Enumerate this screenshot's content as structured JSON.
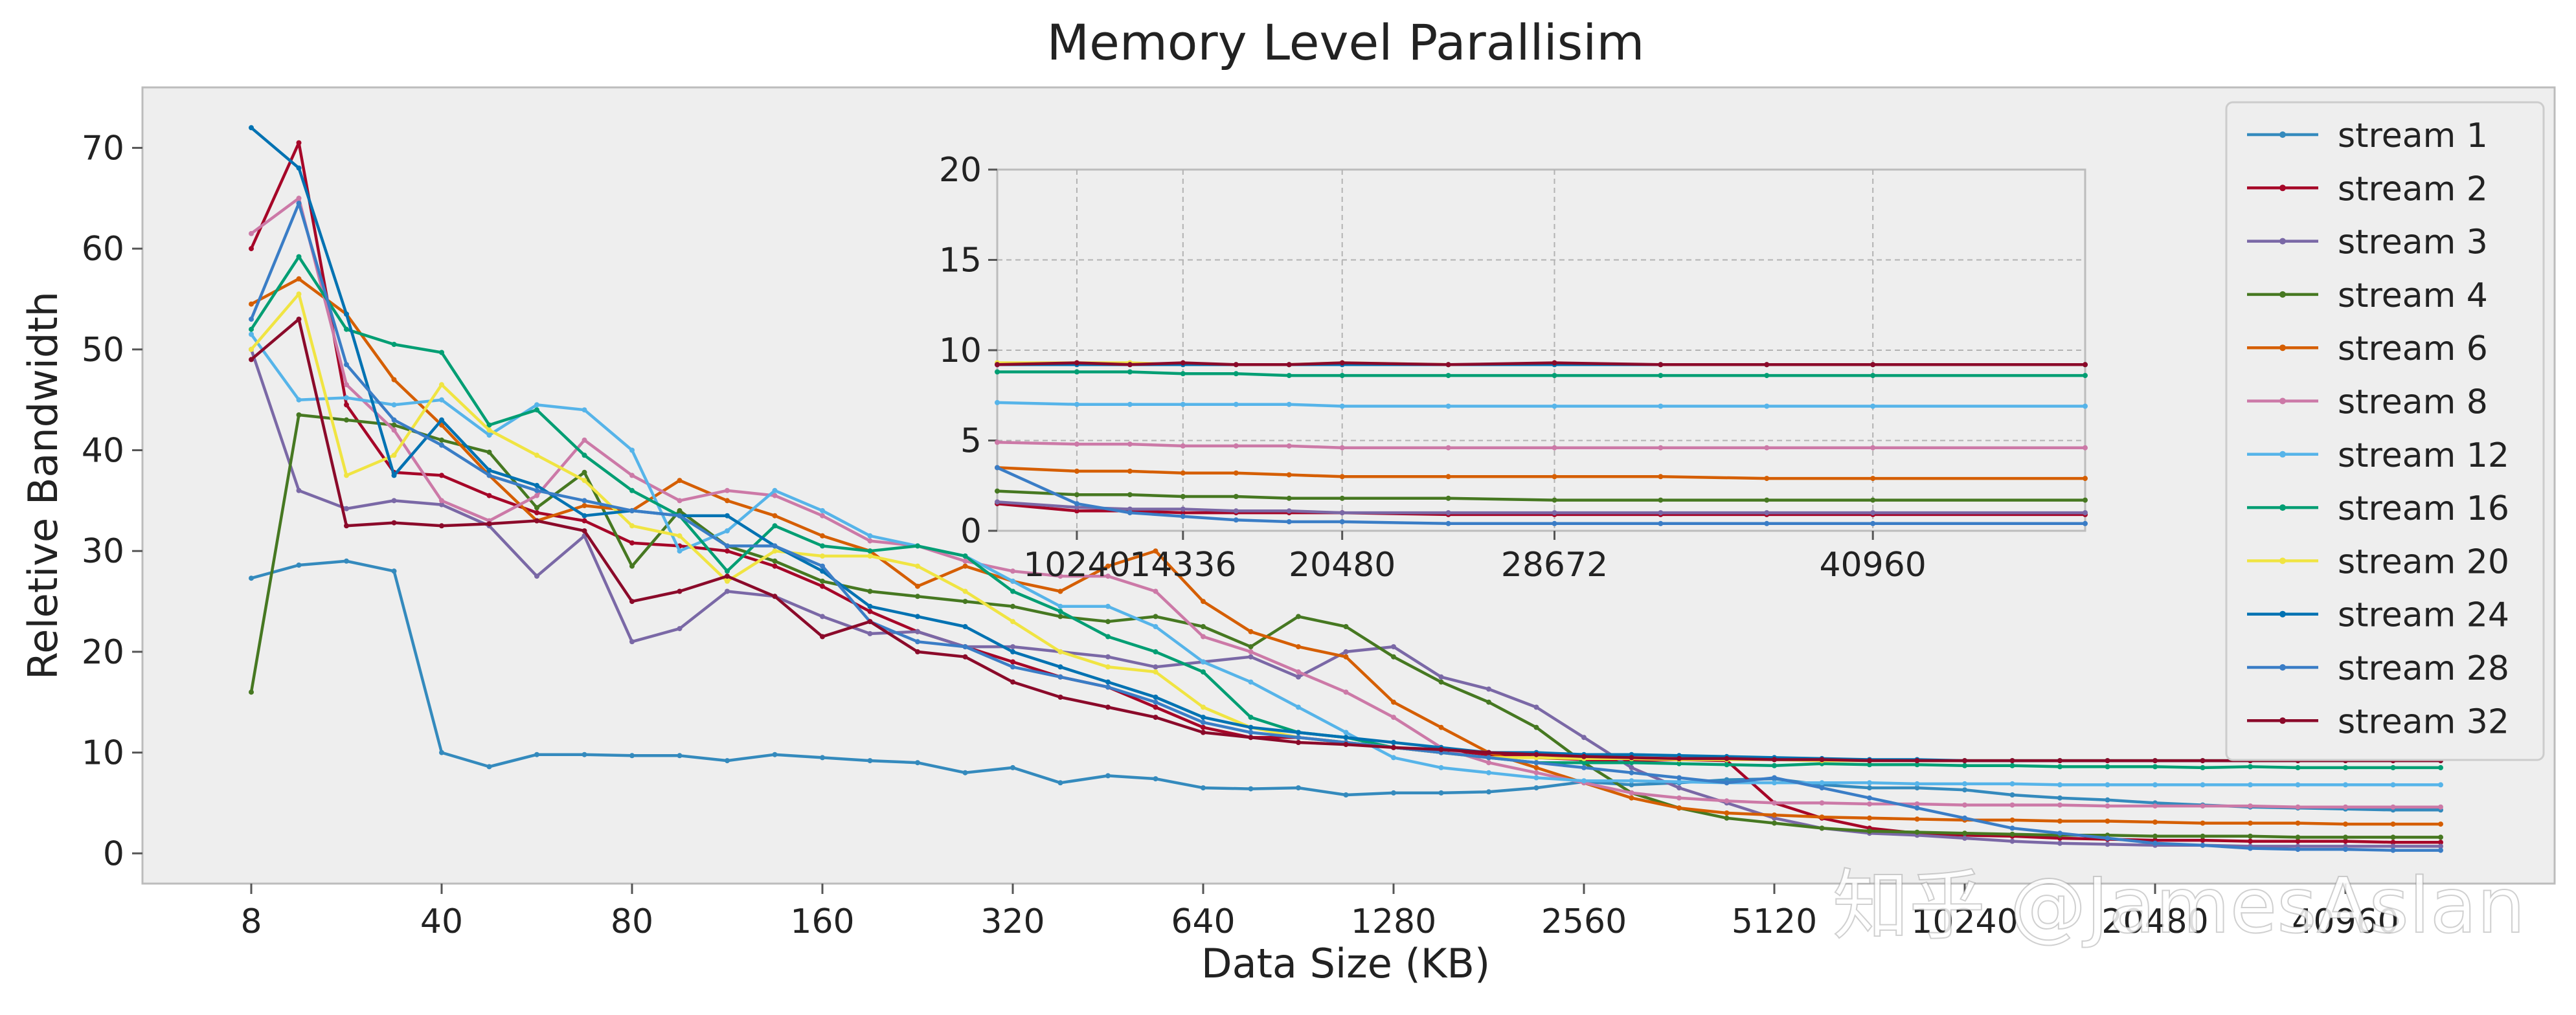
{
  "chart_data": {
    "type": "line",
    "title": "Memory Level Parallisim",
    "xlabel": "Data Size (KB)",
    "ylabel": "Reletive Bandwidth",
    "ylim": [
      -3,
      76
    ],
    "yticks": [
      0,
      10,
      20,
      30,
      40,
      50,
      60,
      70
    ],
    "xtick_labels": [
      "8",
      "40",
      "80",
      "160",
      "320",
      "640",
      "1280",
      "2560",
      "5120",
      "10240",
      "20480",
      "40960"
    ],
    "xtick_index": [
      0,
      4,
      8,
      12,
      16,
      20,
      24,
      28,
      32,
      36,
      40,
      44
    ],
    "x_index": [
      0,
      1,
      2,
      3,
      4,
      5,
      6,
      7,
      8,
      9,
      10,
      11,
      12,
      13,
      14,
      15,
      16,
      17,
      18,
      19,
      20,
      21,
      22,
      23,
      24,
      25,
      26,
      27,
      28,
      29,
      30,
      31,
      32,
      33,
      34,
      35,
      36,
      37,
      38,
      39,
      40,
      41,
      42,
      43,
      44,
      45,
      46
    ],
    "grid": false,
    "legend": "right",
    "watermark": "知乎 @JamesAslan",
    "series": [
      {
        "name": "stream 1",
        "color": "#348ABD",
        "values": [
          27.3,
          28.6,
          29.0,
          28.0,
          10.0,
          8.6,
          9.8,
          9.8,
          9.7,
          9.7,
          9.2,
          9.8,
          9.5,
          9.2,
          9.0,
          8.0,
          8.5,
          7.0,
          7.7,
          7.4,
          6.5,
          6.4,
          6.5,
          5.8,
          6.0,
          6.0,
          6.1,
          6.5,
          7.1,
          6.8,
          7.0,
          7.3,
          7.4,
          6.8,
          6.5,
          6.5,
          6.3,
          5.8,
          5.5,
          5.3,
          5.0,
          4.8,
          4.6,
          4.5,
          4.4,
          4.3,
          4.3
        ]
      },
      {
        "name": "stream 2",
        "color": "#A60628",
        "values": [
          60.0,
          70.5,
          44.5,
          37.8,
          37.5,
          35.5,
          33.8,
          33.0,
          30.8,
          30.5,
          30.0,
          28.5,
          26.5,
          24.0,
          22.0,
          20.5,
          19.0,
          17.5,
          16.5,
          14.5,
          12.5,
          11.5,
          11.5,
          11.0,
          10.5,
          10.0,
          9.8,
          9.5,
          9.3,
          9.2,
          9.3,
          9.2,
          5.0,
          3.5,
          2.5,
          2.0,
          1.8,
          1.7,
          1.5,
          1.4,
          1.3,
          1.3,
          1.2,
          1.2,
          1.2,
          1.1,
          1.1
        ]
      },
      {
        "name": "stream 3",
        "color": "#7A68A6",
        "values": [
          50.0,
          36.0,
          34.2,
          35.0,
          34.6,
          32.5,
          27.5,
          31.5,
          21.0,
          22.3,
          26.0,
          25.5,
          23.5,
          21.8,
          22.0,
          20.5,
          20.5,
          20.0,
          19.5,
          18.5,
          19.0,
          19.5,
          17.5,
          20.0,
          20.5,
          17.5,
          16.3,
          14.5,
          11.5,
          8.5,
          6.5,
          5.0,
          3.5,
          2.5,
          2.0,
          1.8,
          1.5,
          1.2,
          1.0,
          0.9,
          0.8,
          0.8,
          0.7,
          0.7,
          0.7,
          0.7,
          0.7
        ]
      },
      {
        "name": "stream 4",
        "color": "#467821",
        "values": [
          16.0,
          43.5,
          43.0,
          42.5,
          41.0,
          39.8,
          34.3,
          37.8,
          28.5,
          34.0,
          30.5,
          29.0,
          27.0,
          26.0,
          25.5,
          25.0,
          24.5,
          23.5,
          23.0,
          23.5,
          22.5,
          20.5,
          23.5,
          22.5,
          19.5,
          17.0,
          15.0,
          12.5,
          9.0,
          6.0,
          4.5,
          3.5,
          3.0,
          2.5,
          2.2,
          2.1,
          2.0,
          1.9,
          1.8,
          1.8,
          1.7,
          1.7,
          1.7,
          1.6,
          1.6,
          1.6,
          1.6
        ]
      },
      {
        "name": "stream 6",
        "color": "#D55E00",
        "values": [
          54.5,
          57.0,
          53.5,
          47.0,
          42.5,
          37.5,
          33.0,
          34.5,
          34.0,
          37.0,
          35.0,
          33.5,
          31.5,
          30.0,
          26.5,
          28.5,
          27.0,
          26.0,
          28.5,
          30.0,
          25.0,
          22.0,
          20.5,
          19.5,
          15.0,
          12.5,
          10.0,
          8.5,
          7.0,
          5.5,
          4.5,
          4.0,
          3.8,
          3.6,
          3.5,
          3.4,
          3.3,
          3.3,
          3.2,
          3.2,
          3.1,
          3.0,
          3.0,
          3.0,
          2.9,
          2.9,
          2.9
        ]
      },
      {
        "name": "stream 8",
        "color": "#CC79A7",
        "values": [
          61.5,
          65.0,
          46.5,
          42.0,
          35.0,
          33.0,
          35.5,
          41.0,
          37.5,
          35.0,
          36.0,
          35.5,
          33.5,
          31.0,
          30.5,
          29.0,
          28.0,
          27.5,
          27.5,
          26.0,
          21.5,
          20.0,
          18.0,
          16.0,
          13.5,
          10.5,
          9.0,
          8.0,
          7.0,
          6.0,
          5.5,
          5.2,
          5.0,
          5.0,
          4.9,
          4.9,
          4.8,
          4.8,
          4.8,
          4.7,
          4.7,
          4.7,
          4.7,
          4.6,
          4.6,
          4.6,
          4.6
        ]
      },
      {
        "name": "stream 12",
        "color": "#56B4E9",
        "values": [
          51.5,
          45.0,
          45.2,
          44.5,
          45.0,
          41.5,
          44.5,
          44.0,
          40.0,
          30.0,
          32.0,
          36.0,
          34.0,
          31.5,
          30.5,
          29.5,
          27.0,
          24.5,
          24.5,
          22.5,
          19.0,
          17.0,
          14.5,
          12.0,
          9.5,
          8.5,
          8.0,
          7.5,
          7.2,
          7.2,
          7.1,
          7.0,
          7.0,
          7.0,
          7.0,
          6.9,
          6.9,
          6.9,
          6.8,
          6.8,
          6.8,
          6.8,
          6.8,
          6.8,
          6.8,
          6.8,
          6.8
        ]
      },
      {
        "name": "stream 16",
        "color": "#009E73",
        "values": [
          52.0,
          59.2,
          52.0,
          50.5,
          49.7,
          42.5,
          44.0,
          39.5,
          36.0,
          33.5,
          28.0,
          32.5,
          30.5,
          30.0,
          30.5,
          29.5,
          26.0,
          24.0,
          21.5,
          20.0,
          18.0,
          13.5,
          12.0,
          11.5,
          10.5,
          10.0,
          9.5,
          9.0,
          9.0,
          9.0,
          8.9,
          8.8,
          8.7,
          8.9,
          8.8,
          8.8,
          8.7,
          8.7,
          8.6,
          8.6,
          8.6,
          8.5,
          8.6,
          8.5,
          8.5,
          8.5,
          8.5
        ]
      },
      {
        "name": "stream 20",
        "color": "#F0E442",
        "values": [
          50.0,
          55.5,
          37.5,
          39.5,
          46.5,
          42.0,
          39.5,
          37.0,
          32.5,
          31.5,
          27.0,
          30.0,
          29.5,
          29.5,
          28.5,
          26.0,
          23.0,
          20.0,
          18.5,
          18.0,
          14.5,
          12.5,
          11.5,
          11.0,
          10.5,
          10.0,
          9.5,
          9.5,
          9.4,
          9.4,
          9.3,
          9.3,
          9.3,
          9.2,
          9.2,
          9.2,
          9.2,
          9.2,
          9.2,
          9.2,
          9.2,
          9.2,
          9.2,
          9.2,
          9.2,
          9.2,
          9.2
        ]
      },
      {
        "name": "stream 24",
        "color": "#0072B2",
        "values": [
          72.0,
          68.0,
          53.5,
          37.5,
          43.0,
          38.0,
          36.5,
          33.5,
          34.0,
          33.5,
          33.5,
          30.5,
          28.0,
          24.5,
          23.5,
          22.5,
          20.0,
          18.5,
          17.0,
          15.5,
          13.5,
          12.5,
          12.0,
          11.5,
          11.0,
          10.5,
          10.0,
          10.0,
          9.8,
          9.8,
          9.7,
          9.6,
          9.5,
          9.4,
          9.3,
          9.3,
          9.2,
          9.2,
          9.2,
          9.2,
          9.2,
          9.2,
          9.2,
          9.2,
          9.2,
          9.2,
          9.2
        ]
      },
      {
        "name": "stream 28",
        "color": "#3A7DC6",
        "values": [
          53.0,
          64.5,
          48.5,
          43.0,
          40.5,
          37.5,
          36.0,
          35.0,
          34.0,
          33.5,
          30.5,
          30.5,
          28.5,
          23.0,
          21.0,
          20.5,
          18.5,
          17.5,
          16.5,
          15.0,
          13.0,
          12.0,
          11.5,
          11.0,
          10.5,
          10.0,
          9.5,
          9.0,
          8.5,
          8.0,
          7.5,
          7.0,
          7.5,
          6.5,
          5.5,
          4.5,
          3.5,
          2.5,
          2.0,
          1.5,
          1.0,
          0.8,
          0.5,
          0.4,
          0.4,
          0.3,
          0.3
        ]
      },
      {
        "name": "stream 32",
        "color": "#8B0A2A",
        "values": [
          49.0,
          53.0,
          32.5,
          32.8,
          32.5,
          32.7,
          33.0,
          32.0,
          25.0,
          26.0,
          27.5,
          25.5,
          21.5,
          23.0,
          20.0,
          19.5,
          17.0,
          15.5,
          14.5,
          13.5,
          12.0,
          11.5,
          11.0,
          10.8,
          10.5,
          10.3,
          10.0,
          9.8,
          9.6,
          9.5,
          9.4,
          9.4,
          9.3,
          9.3,
          9.2,
          9.2,
          9.2,
          9.2,
          9.2,
          9.2,
          9.2,
          9.2,
          9.2,
          9.2,
          9.2,
          9.2,
          9.2
        ]
      }
    ],
    "inset": {
      "ylim": [
        0,
        20
      ],
      "yticks": [
        0,
        5,
        10,
        15,
        20
      ],
      "xlim": [
        7168,
        49152
      ],
      "xticks": [
        10240,
        14336,
        20480,
        28672,
        40960
      ],
      "xtick_labels": [
        "10240",
        "14336",
        "20480",
        "28672",
        "40960"
      ],
      "x_values": [
        7168,
        10240,
        12288,
        14336,
        16384,
        18432,
        20480,
        24576,
        28672,
        32768,
        36864,
        40960,
        49152
      ],
      "series": [
        {
          "name": "stream 2",
          "values": [
            1.5,
            1.1,
            1.1,
            1.0,
            1.0,
            1.0,
            1.0,
            0.9,
            0.9,
            0.9,
            0.9,
            0.9,
            0.9
          ]
        },
        {
          "name": "stream 3",
          "values": [
            1.6,
            1.3,
            1.2,
            1.2,
            1.1,
            1.1,
            1.0,
            1.0,
            1.0,
            1.0,
            1.0,
            1.0,
            1.0
          ]
        },
        {
          "name": "stream 4",
          "values": [
            2.2,
            2.0,
            2.0,
            1.9,
            1.9,
            1.8,
            1.8,
            1.8,
            1.7,
            1.7,
            1.7,
            1.7,
            1.7
          ]
        },
        {
          "name": "stream 6",
          "values": [
            3.5,
            3.3,
            3.3,
            3.2,
            3.2,
            3.1,
            3.0,
            3.0,
            3.0,
            3.0,
            2.9,
            2.9,
            2.9
          ]
        },
        {
          "name": "stream 8",
          "values": [
            4.9,
            4.8,
            4.8,
            4.7,
            4.7,
            4.7,
            4.6,
            4.6,
            4.6,
            4.6,
            4.6,
            4.6,
            4.6
          ]
        },
        {
          "name": "stream 12",
          "values": [
            7.1,
            7.0,
            7.0,
            7.0,
            7.0,
            7.0,
            6.9,
            6.9,
            6.9,
            6.9,
            6.9,
            6.9,
            6.9
          ]
        },
        {
          "name": "stream 16",
          "values": [
            8.8,
            8.8,
            8.8,
            8.7,
            8.7,
            8.6,
            8.6,
            8.6,
            8.6,
            8.6,
            8.6,
            8.6,
            8.6
          ]
        },
        {
          "name": "stream 20",
          "values": [
            9.3,
            9.3,
            9.3,
            9.2,
            9.2,
            9.2,
            9.3,
            9.2,
            9.2,
            9.2,
            9.2,
            9.2,
            9.2
          ]
        },
        {
          "name": "stream 24",
          "values": [
            9.2,
            9.2,
            9.2,
            9.2,
            9.2,
            9.2,
            9.2,
            9.2,
            9.2,
            9.2,
            9.2,
            9.2,
            9.2
          ]
        },
        {
          "name": "stream 28",
          "values": [
            3.5,
            1.5,
            1.0,
            0.8,
            0.6,
            0.5,
            0.5,
            0.4,
            0.4,
            0.4,
            0.4,
            0.4,
            0.4
          ]
        },
        {
          "name": "stream 32",
          "values": [
            9.2,
            9.3,
            9.2,
            9.3,
            9.2,
            9.2,
            9.3,
            9.2,
            9.3,
            9.2,
            9.2,
            9.2,
            9.2
          ]
        }
      ]
    }
  }
}
